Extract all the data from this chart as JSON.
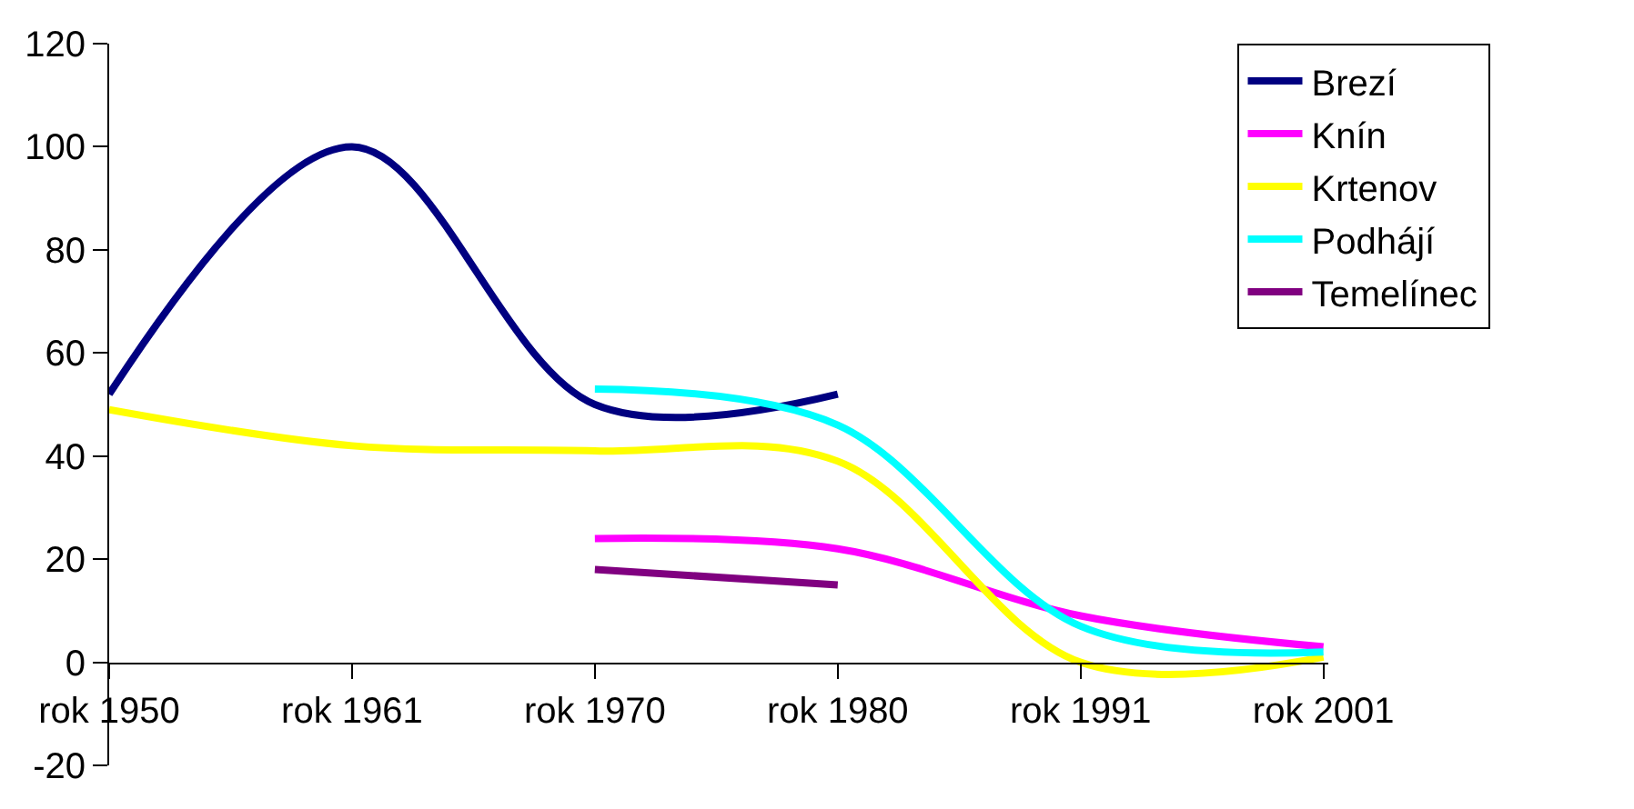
{
  "chart_data": {
    "type": "line",
    "categories": [
      "rok 1950",
      "rok 1961",
      "rok 1970",
      "rok 1980",
      "rok 1991",
      "rok 2001"
    ],
    "series": [
      {
        "name": "Brezí",
        "color": "#000080",
        "values": [
          52,
          100,
          50,
          52,
          null,
          null
        ]
      },
      {
        "name": "Knín",
        "color": "#ff00ff",
        "values": [
          null,
          null,
          24,
          22,
          9,
          3
        ]
      },
      {
        "name": "Krtenov",
        "color": "#ffff00",
        "values": [
          49,
          42,
          41,
          39,
          0,
          1
        ]
      },
      {
        "name": "Podhájí",
        "color": "#00ffff",
        "values": [
          null,
          null,
          53,
          46,
          7,
          2
        ]
      },
      {
        "name": "Temelínec",
        "color": "#800080",
        "values": [
          null,
          null,
          18,
          15,
          null,
          null
        ]
      }
    ],
    "ylim": [
      -20,
      120
    ],
    "yticks": [
      -20,
      0,
      20,
      40,
      60,
      80,
      100,
      120
    ],
    "legend": "top right",
    "marker": "none",
    "line_style": "solid"
  }
}
